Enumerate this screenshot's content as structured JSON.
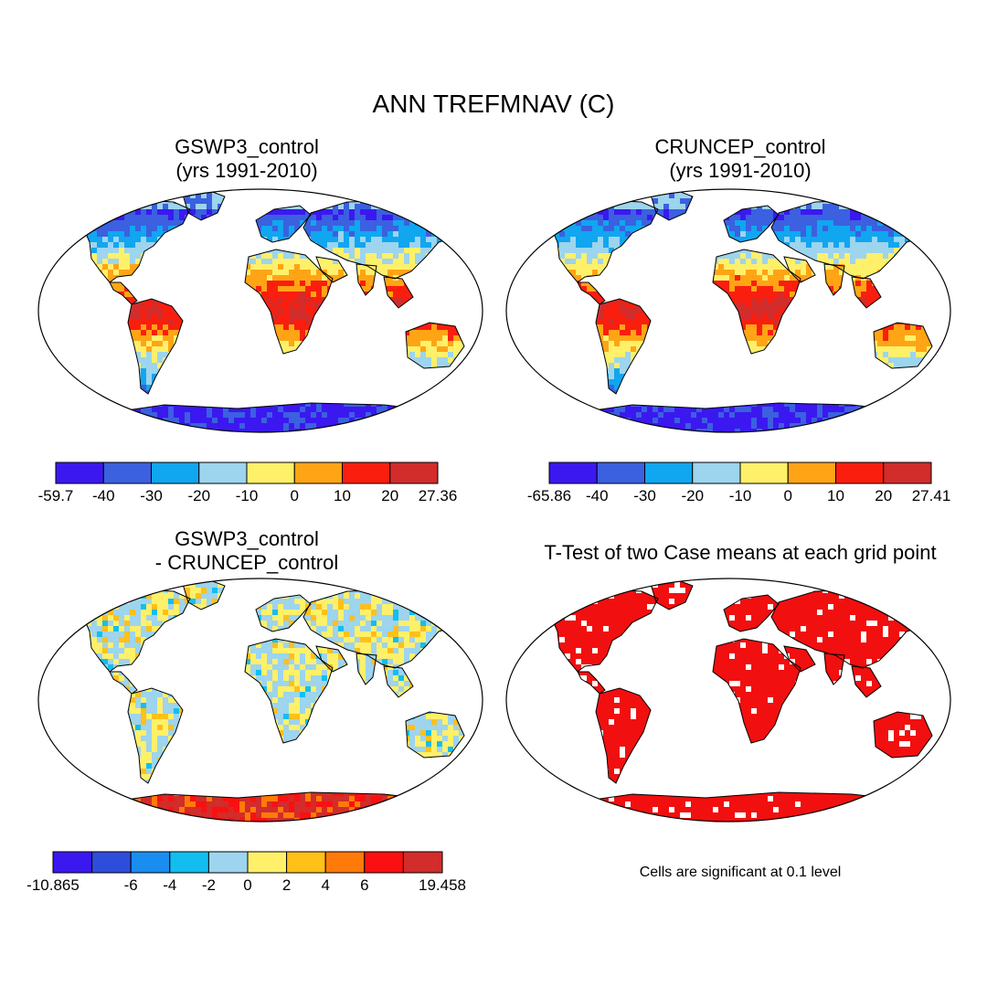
{
  "figure": {
    "title": "ANN TREFMNAV (C)",
    "note": "Cells are significant at 0.1 level"
  },
  "panels": [
    {
      "id": "tl",
      "title_line1": "GSWP3_control",
      "title_line2": "(yrs 1991-2010)",
      "colors": [
        "#3b18f0",
        "#3b60e0",
        "#10a6f0",
        "#9dd4ee",
        "#fff06a",
        "#ffa415",
        "#fa1e0f",
        "#d22c2b"
      ],
      "ticks": [
        "-59.7",
        "-40",
        "-30",
        "-20",
        "-10",
        "0",
        "10",
        "20",
        "27.36"
      ]
    },
    {
      "id": "tr",
      "title_line1": "CRUNCEP_control",
      "title_line2": "(yrs 1991-2010)",
      "colors": [
        "#3b18f0",
        "#3b60e0",
        "#10a6f0",
        "#9dd4ee",
        "#fff06a",
        "#ffa415",
        "#fa1e0f",
        "#d22c2b"
      ],
      "ticks": [
        "-65.86",
        "-40",
        "-30",
        "-20",
        "-10",
        "0",
        "10",
        "20",
        "27.41"
      ]
    },
    {
      "id": "bl",
      "title_line1": "GSWP3_control",
      "title_line2": "- CRUNCEP_control",
      "colors": [
        "#3b18f0",
        "#2f4ddb",
        "#1a8ef0",
        "#12bef0",
        "#9dd4ee",
        "#fff06a",
        "#ffc018",
        "#ff7a08",
        "#fa1010",
        "#d22c2b"
      ],
      "ticks": [
        "-10.865",
        "",
        "-6",
        "-4",
        "-2",
        "0",
        "2",
        "4",
        "6",
        "",
        "19.458"
      ]
    },
    {
      "id": "br",
      "title_line1": "T-Test of two Case means at each grid point",
      "title_line2": ""
    }
  ]
}
